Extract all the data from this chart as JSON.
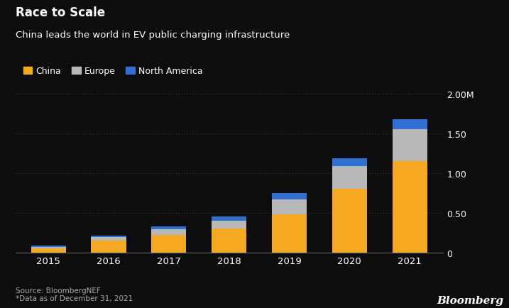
{
  "title": "Race to Scale",
  "subtitle": "China leads the world in EV public charging infrastructure",
  "years": [
    2015,
    2016,
    2017,
    2018,
    2019,
    2020,
    2021
  ],
  "china": [
    0.05,
    0.15,
    0.22,
    0.3,
    0.48,
    0.8,
    1.15
  ],
  "europe": [
    0.02,
    0.04,
    0.07,
    0.1,
    0.19,
    0.29,
    0.4
  ],
  "north_america": [
    0.015,
    0.025,
    0.035,
    0.05,
    0.075,
    0.1,
    0.13
  ],
  "china_color": "#F5A820",
  "europe_color": "#B8B8B8",
  "na_color": "#2E6FD4",
  "background_color": "#0d0d0d",
  "text_color": "#ffffff",
  "yticks": [
    0,
    0.5,
    1.0,
    1.5,
    2.0
  ],
  "ytick_labels": [
    "0",
    "0.50",
    "1.00",
    "1.50",
    "2.00M"
  ],
  "ylim": [
    0,
    2.1
  ],
  "source_text": "Source: BloombergNEF\n*Data as of December 31, 2021",
  "bloomberg_text": "Bloomberg",
  "legend_labels": [
    "China",
    "Europe",
    "North America"
  ]
}
